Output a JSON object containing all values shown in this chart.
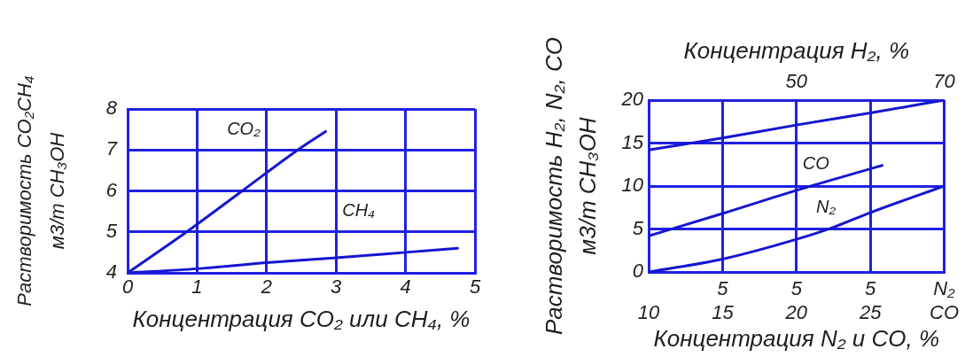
{
  "chart_data": [
    {
      "type": "line",
      "xlabel": "Концентрация CO₂ или CH₄, %",
      "ylabel": "Растворимость CO₂CH₄\nм3/т CH₃OH",
      "xlim": [
        0,
        5
      ],
      "xticks": [
        0,
        1,
        2,
        3,
        4,
        5
      ],
      "ylim": [
        4,
        8
      ],
      "yticks": [
        4,
        5,
        6,
        7,
        8
      ],
      "grid": true,
      "marker": "none",
      "series": [
        {
          "name": "CO₂",
          "color": "#1515d2",
          "x": [
            0,
            0.85,
            1.65,
            2.45,
            2.85
          ],
          "values": [
            4,
            5,
            6,
            7,
            7.45
          ]
        },
        {
          "name": "CH₄",
          "color": "#1515d2",
          "x": [
            0,
            1,
            2,
            3,
            4,
            4.75
          ],
          "values": [
            4,
            4.1,
            4.25,
            4.37,
            4.5,
            4.6
          ]
        }
      ]
    },
    {
      "type": "line",
      "xlabel": "Концентрация N₂ и CO, %",
      "x2label": "Концентрация H₂, %",
      "ylabel": "Растворимость H₂, N₂, CO\nм3/т CH₃OH",
      "xlim": [
        10,
        30
      ],
      "xticks": [
        10,
        15,
        20,
        25,
        {
          "value": 30,
          "label": "CO"
        }
      ],
      "x2lim": [
        30,
        70
      ],
      "x2ticks": [
        50,
        70
      ],
      "ylim": [
        0,
        20
      ],
      "yticks": [
        0,
        5,
        10,
        15,
        20
      ],
      "grid": true,
      "marker": "none",
      "annotations": [
        "5",
        "5",
        "5",
        "N₂"
      ],
      "series": [
        {
          "color": "#1515d2",
          "axis": "x2",
          "x": [
            30,
            40,
            50,
            60,
            70
          ],
          "values": [
            14.2,
            15.6,
            17.1,
            18.5,
            20
          ]
        },
        {
          "name": "CO",
          "color": "#1515d2",
          "x": [
            10,
            15,
            20,
            25,
            25.8
          ],
          "values": [
            4.2,
            6.8,
            9.5,
            12,
            12.4
          ]
        },
        {
          "name": "N₂",
          "color": "#1515d2",
          "x": [
            10,
            15,
            20,
            22.5,
            25,
            30
          ],
          "values": [
            0,
            1.5,
            3.8,
            5.2,
            6.9,
            10
          ]
        }
      ]
    }
  ]
}
